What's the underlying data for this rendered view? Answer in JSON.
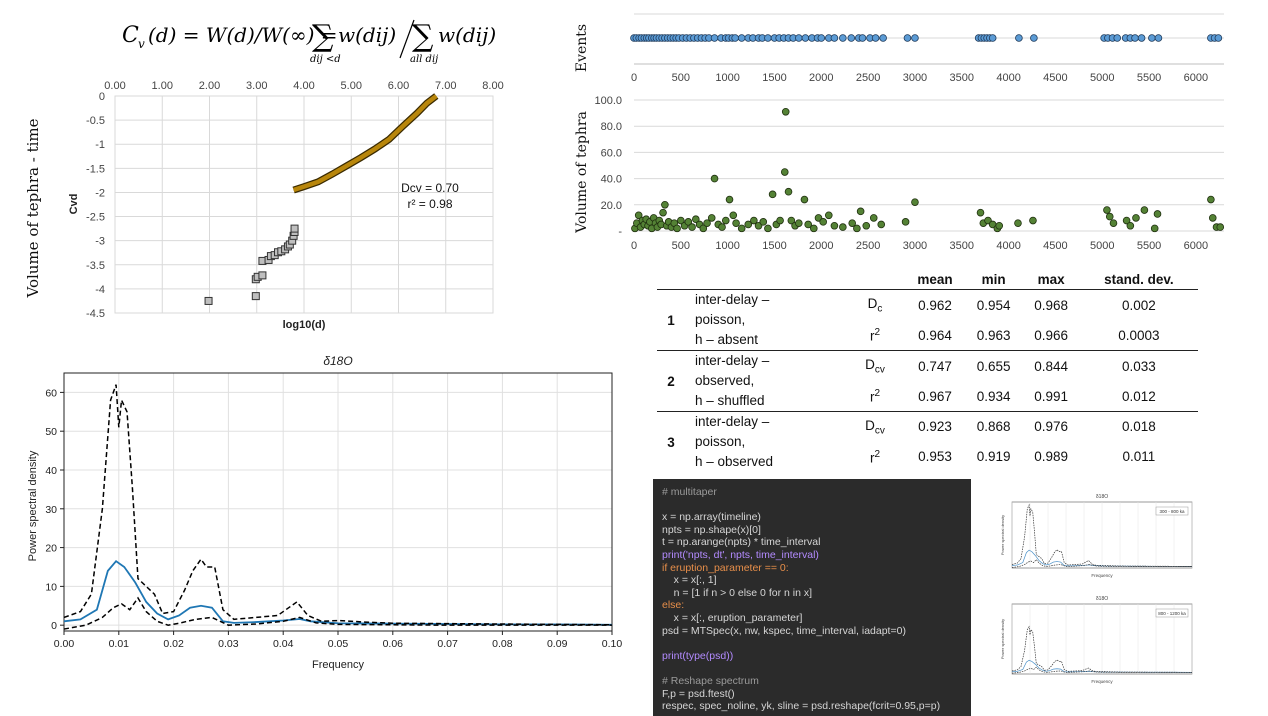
{
  "formula": {
    "lhs": "C",
    "lhs_sub": "v",
    "lhs_arg": "(d) = W(d)/W(∞) =",
    "sum1_sub": "dij <d",
    "sum2_sub": "all dij",
    "term": "w(dij)"
  },
  "cvd_chart": {
    "type": "scatter",
    "ylabel_outer": "Volume of tephra - time",
    "ylabel": "Cvd",
    "xlabel": "log10(d)",
    "x_ticks": [
      "0.00",
      "1.00",
      "2.00",
      "3.00",
      "4.00",
      "5.00",
      "6.00",
      "7.00",
      "8.00"
    ],
    "y_ticks": [
      "0",
      "-0.5",
      "-1",
      "-1.5",
      "-2",
      "-2.5",
      "-3",
      "-3.5",
      "-4",
      "-4.5"
    ],
    "xlim": [
      0,
      8
    ],
    "ylim": [
      -4.5,
      0
    ],
    "annotation_line1": "Dcv = 0.70",
    "annotation_line2": "r² = 0.98",
    "fit_color": "#b8860b",
    "marker_color": "#bfbfbf",
    "points": [
      [
        1.98,
        -4.25
      ],
      [
        2.98,
        -4.15
      ],
      [
        2.98,
        -3.8
      ],
      [
        3.02,
        -3.75
      ],
      [
        3.12,
        -3.72
      ],
      [
        3.12,
        -3.42
      ],
      [
        3.25,
        -3.4
      ],
      [
        3.3,
        -3.32
      ],
      [
        3.38,
        -3.3
      ],
      [
        3.45,
        -3.24
      ],
      [
        3.52,
        -3.22
      ],
      [
        3.6,
        -3.18
      ],
      [
        3.66,
        -3.12
      ],
      [
        3.7,
        -3.08
      ],
      [
        3.75,
        -3.0
      ],
      [
        3.78,
        -2.9
      ],
      [
        3.8,
        -2.82
      ],
      [
        3.8,
        -2.75
      ]
    ],
    "fit_line": [
      [
        3.78,
        -1.95
      ],
      [
        4.0,
        -1.88
      ],
      [
        4.3,
        -1.78
      ],
      [
        4.6,
        -1.62
      ],
      [
        4.9,
        -1.45
      ],
      [
        5.2,
        -1.28
      ],
      [
        5.5,
        -1.1
      ],
      [
        5.8,
        -0.9
      ],
      [
        6.1,
        -0.62
      ],
      [
        6.4,
        -0.35
      ],
      [
        6.6,
        -0.15
      ],
      [
        6.8,
        0.0
      ]
    ]
  },
  "events_chart": {
    "type": "scatter",
    "ylabel": "Events",
    "x_ticks": [
      "0",
      "500",
      "1000",
      "1500",
      "2000",
      "2500",
      "3000",
      "3500",
      "4000",
      "4500",
      "5000",
      "5500",
      "6000"
    ],
    "xlim": [
      0,
      6300
    ],
    "marker_color": "#5b9bd5",
    "x": [
      0,
      25,
      55,
      80,
      110,
      135,
      160,
      190,
      215,
      240,
      270,
      300,
      330,
      360,
      390,
      420,
      450,
      480,
      520,
      560,
      600,
      640,
      680,
      720,
      760,
      800,
      860,
      930,
      980,
      1010,
      1050,
      1080,
      1150,
      1220,
      1270,
      1330,
      1370,
      1430,
      1500,
      1550,
      1600,
      1650,
      1700,
      1760,
      1830,
      1900,
      1960,
      2000,
      2080,
      2140,
      2230,
      2320,
      2400,
      2440,
      2520,
      2580,
      2660,
      2920,
      3000,
      3680,
      3710,
      3740,
      3770,
      3800,
      3830,
      4110,
      4270,
      5020,
      5060,
      5110,
      5160,
      5250,
      5300,
      5350,
      5420,
      5530,
      5600,
      6160,
      6200,
      6240
    ]
  },
  "tephra_chart": {
    "type": "scatter",
    "ylabel": "Volume of tephra",
    "x_ticks": [
      "0",
      "500",
      "1000",
      "1500",
      "2000",
      "2500",
      "3000",
      "3500",
      "4000",
      "4500",
      "5000",
      "5500",
      "6000"
    ],
    "y_ticks": [
      "-",
      "20.0",
      "40.0",
      "60.0",
      "80.0",
      "100.0"
    ],
    "xlim": [
      0,
      6300
    ],
    "ylim": [
      0,
      100
    ],
    "marker_color": "#548235",
    "points": [
      [
        10,
        2
      ],
      [
        30,
        6
      ],
      [
        50,
        12
      ],
      [
        70,
        3
      ],
      [
        90,
        8
      ],
      [
        110,
        5
      ],
      [
        130,
        9
      ],
      [
        150,
        4
      ],
      [
        170,
        7
      ],
      [
        190,
        2
      ],
      [
        210,
        10
      ],
      [
        230,
        6
      ],
      [
        250,
        3
      ],
      [
        270,
        8
      ],
      [
        290,
        5
      ],
      [
        310,
        14
      ],
      [
        330,
        20
      ],
      [
        350,
        4
      ],
      [
        370,
        7
      ],
      [
        400,
        3
      ],
      [
        430,
        6
      ],
      [
        460,
        2
      ],
      [
        500,
        8
      ],
      [
        540,
        4
      ],
      [
        580,
        7
      ],
      [
        620,
        3
      ],
      [
        660,
        9
      ],
      [
        700,
        5
      ],
      [
        740,
        2
      ],
      [
        780,
        6
      ],
      [
        830,
        10
      ],
      [
        860,
        40
      ],
      [
        900,
        5
      ],
      [
        940,
        3
      ],
      [
        980,
        8
      ],
      [
        1020,
        24
      ],
      [
        1060,
        12
      ],
      [
        1090,
        6
      ],
      [
        1150,
        2
      ],
      [
        1220,
        5
      ],
      [
        1280,
        8
      ],
      [
        1330,
        4
      ],
      [
        1380,
        7
      ],
      [
        1430,
        2
      ],
      [
        1480,
        28
      ],
      [
        1520,
        5
      ],
      [
        1560,
        8
      ],
      [
        1610,
        45
      ],
      [
        1620,
        91
      ],
      [
        1650,
        30
      ],
      [
        1680,
        8
      ],
      [
        1720,
        4
      ],
      [
        1760,
        6
      ],
      [
        1820,
        24
      ],
      [
        1860,
        5
      ],
      [
        1920,
        2
      ],
      [
        1970,
        10
      ],
      [
        2020,
        7
      ],
      [
        2080,
        12
      ],
      [
        2140,
        4
      ],
      [
        2230,
        3
      ],
      [
        2330,
        6
      ],
      [
        2380,
        2
      ],
      [
        2420,
        15
      ],
      [
        2480,
        4
      ],
      [
        2560,
        10
      ],
      [
        2640,
        5
      ],
      [
        2900,
        7
      ],
      [
        3000,
        22
      ],
      [
        3700,
        14
      ],
      [
        3730,
        6
      ],
      [
        3780,
        8
      ],
      [
        3830,
        5
      ],
      [
        3880,
        2
      ],
      [
        3900,
        4
      ],
      [
        4100,
        6
      ],
      [
        4260,
        8
      ],
      [
        5050,
        16
      ],
      [
        5080,
        11
      ],
      [
        5120,
        6
      ],
      [
        5260,
        8
      ],
      [
        5300,
        4
      ],
      [
        5360,
        10
      ],
      [
        5450,
        16
      ],
      [
        5560,
        2
      ],
      [
        5590,
        13
      ],
      [
        6160,
        24
      ],
      [
        6180,
        10
      ],
      [
        6220,
        3
      ],
      [
        6260,
        3
      ]
    ]
  },
  "spectrum_chart": {
    "type": "line",
    "title": "δ18O",
    "xlabel": "Frequency",
    "ylabel": "Power spectral density",
    "x_ticks": [
      "0.00",
      "0.01",
      "0.02",
      "0.03",
      "0.04",
      "0.05",
      "0.06",
      "0.07",
      "0.08",
      "0.09",
      "0.10"
    ],
    "y_ticks": [
      "0",
      "10",
      "20",
      "30",
      "40",
      "50",
      "60"
    ],
    "xlim": [
      0,
      0.1
    ],
    "ylim": [
      -1.5,
      65
    ],
    "series": [
      {
        "style": "solid",
        "color": "#1f77b4",
        "x": [
          0,
          0.003,
          0.006,
          0.008,
          0.0095,
          0.011,
          0.013,
          0.015,
          0.017,
          0.019,
          0.021,
          0.023,
          0.025,
          0.027,
          0.029,
          0.031,
          0.035,
          0.04,
          0.043,
          0.045,
          0.05,
          0.06,
          0.07,
          0.08,
          0.09,
          0.1
        ],
        "y": [
          1,
          1.5,
          4,
          14,
          16.5,
          15,
          11,
          6,
          3,
          1.5,
          2.5,
          4.5,
          5,
          4.5,
          1,
          0.6,
          0.8,
          1.2,
          1.6,
          1.0,
          0.5,
          0.4,
          0.3,
          0.2,
          0.2,
          0.1
        ]
      },
      {
        "style": "dashed",
        "color": "#000000",
        "x": [
          0,
          0.003,
          0.005,
          0.007,
          0.0085,
          0.0095,
          0.01,
          0.0105,
          0.0115,
          0.0125,
          0.0135,
          0.015,
          0.0165,
          0.018,
          0.02,
          0.022,
          0.0235,
          0.025,
          0.026,
          0.0275,
          0.029,
          0.031,
          0.035,
          0.039,
          0.0425,
          0.0445,
          0.047,
          0.05,
          0.055,
          0.06,
          0.07,
          0.08,
          0.09,
          0.1
        ],
        "y": [
          2,
          3.5,
          8,
          30,
          58,
          62,
          51,
          58,
          55,
          35,
          12,
          10,
          8,
          3,
          3.5,
          9,
          14,
          17,
          15,
          15,
          4,
          1.5,
          2,
          2.5,
          6,
          2.5,
          1,
          1.2,
          0.8,
          0.5,
          0.4,
          0.3,
          0.2,
          0.1
        ]
      },
      {
        "style": "dashed",
        "color": "#000000",
        "x": [
          0,
          0.004,
          0.007,
          0.009,
          0.0105,
          0.012,
          0.0135,
          0.015,
          0.017,
          0.019,
          0.021,
          0.024,
          0.027,
          0.03,
          0.035,
          0.04,
          0.043,
          0.046,
          0.05,
          0.06,
          0.07,
          0.08,
          0.09,
          0.1
        ],
        "y": [
          -1,
          0,
          2,
          4.5,
          5.5,
          4,
          7,
          3.5,
          1,
          0,
          0.5,
          1.5,
          2,
          0,
          0.3,
          1,
          2,
          0.6,
          0.2,
          0.1,
          0,
          0,
          0,
          0
        ]
      }
    ]
  },
  "stats_table": {
    "headers": [
      "mean",
      "min",
      "max",
      "stand. dev."
    ],
    "groups": [
      {
        "num": "1",
        "desc": [
          "inter-delay –",
          "poisson,",
          "h – absent"
        ],
        "rows": [
          {
            "sym": "Dc",
            "sym_base": "D",
            "sym_sub": "c",
            "values": [
              "0.962",
              "0.954",
              "0.968",
              "0.002"
            ]
          },
          {
            "sym": "r2",
            "sym_base": "r",
            "sym_sup": "2",
            "values": [
              "0.964",
              "0.963",
              "0.966",
              "0.0003"
            ]
          }
        ]
      },
      {
        "num": "2",
        "desc": [
          "inter-delay –",
          "observed,",
          "h – shuffled"
        ],
        "rows": [
          {
            "sym": "Dcv",
            "sym_base": "D",
            "sym_sub": "cv",
            "values": [
              "0.747",
              "0.655",
              "0.844",
              "0.033"
            ]
          },
          {
            "sym": "r2",
            "sym_base": "r",
            "sym_sup": "2",
            "values": [
              "0.967",
              "0.934",
              "0.991",
              "0.012"
            ]
          }
        ]
      },
      {
        "num": "3",
        "desc": [
          "inter-delay –",
          "poisson,",
          "h – observed"
        ],
        "rows": [
          {
            "sym": "Dcv",
            "sym_base": "D",
            "sym_sub": "cv",
            "values": [
              "0.923",
              "0.868",
              "0.976",
              "0.018"
            ]
          },
          {
            "sym": "r2",
            "sym_base": "r",
            "sym_sup": "2",
            "values": [
              "0.953",
              "0.919",
              "0.989",
              "0.011"
            ]
          }
        ]
      }
    ]
  },
  "code": {
    "lines": [
      "# multitaper",
      "",
      "x = np.array(timeline)",
      "npts = np.shape(x)[0]",
      "t = np.arange(npts) * time_interval",
      "print('npts, dt', npts, time_interval)",
      "if eruption_parameter == 0:",
      "    x = x[:, 1]",
      "    n = [1 if n > 0 else 0 for n in x]",
      "else:",
      "    x = x[:, eruption_parameter]",
      "psd = MTSpec(x, nw, kspec, time_interval, iadapt=0)",
      "",
      "print(type(psd))",
      "",
      "# Reshape spectrum",
      "F,p = psd.ftest()",
      "respec, spec_noline, yk, sline = psd.reshape(fcrit=0.95,p=p)"
    ]
  },
  "thumbnails": [
    {
      "title": "δ18O",
      "legend": "300 - 800 ka",
      "xlabel": "Frequency",
      "ylabel": "Power spectral density"
    },
    {
      "title": "δ18O",
      "legend": "800 - 1200 ka",
      "xlabel": "Frequency",
      "ylabel": "Power spectral density"
    }
  ]
}
